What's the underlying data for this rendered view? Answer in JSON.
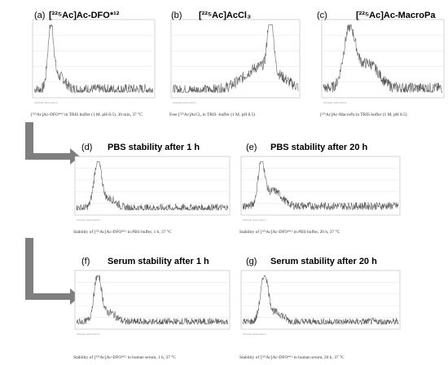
{
  "panels": [
    {
      "letter": "(a)",
      "title": "[²²⁵Ac]Ac-DFO*¹²",
      "caption": "[²²⁵Ac]Ac-DFO*¹² in TRIS buffer (1 M, pH 8.5), 30 min, 37 °C",
      "profile": "early"
    },
    {
      "letter": "(b)",
      "title": "[²²⁵Ac]AcCl₃",
      "caption": "Free [²²⁵Ac]AcCl₃ in TRIS -buffer (1 M, pH 8.5)",
      "profile": "late"
    },
    {
      "letter": "(c)",
      "title": "[²²⁵Ac]Ac-MacroPa",
      "caption": "[²²⁵Ac]Ac-MacroPa in TRIS buffer (1 M, pH 8.5)",
      "profile": "broad"
    },
    {
      "letter": "(d)",
      "title": "PBS stability after 1 h",
      "caption": "Stability of [²²⁵Ac]Ac-DFO*¹² in PBS buffer, 1 h, 37 °C",
      "profile": "early"
    },
    {
      "letter": "(e)",
      "title": "PBS stability  after 20 h",
      "caption": "Stability of [²²⁵Ac]Ac-DFO*¹² in PBS buffer, 20 h, 37 °C",
      "profile": "early-noisy"
    },
    {
      "letter": "(f)",
      "title": "Serum stability after 1 h",
      "caption": "Stability of [²²⁵Ac]Ac-DFO*¹² in human serum, 1 h, 37 °C",
      "profile": "early"
    },
    {
      "letter": "(g)",
      "title": "Serum stability after 20 h",
      "caption": "Stability of [²²⁵Ac]Ac-DFO*¹² in human serum, 20 h, 37 °C",
      "profile": "early"
    }
  ],
  "sample_description_label": "Sample description",
  "colors": {
    "trace": "#555555",
    "arrow": "#7f7f7f",
    "frame": "#b8b8b8"
  }
}
